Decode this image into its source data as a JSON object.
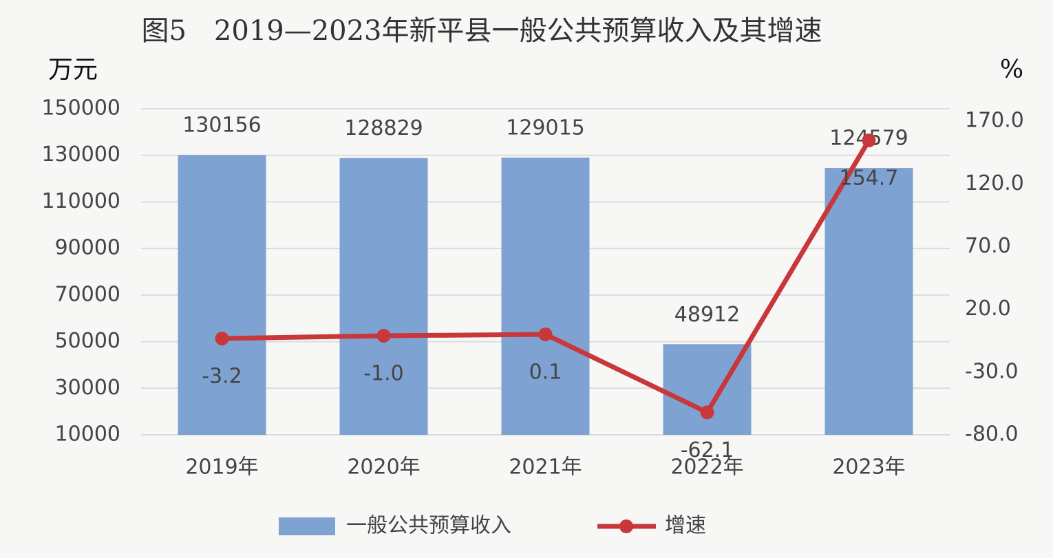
{
  "chart_data": {
    "type": "bar",
    "title": "图5　2019—2023年新平县一般公共预算收入及其增速",
    "y_label": "万元",
    "y2_label": "%",
    "categories": [
      "2019年",
      "2020年",
      "2021年",
      "2022年",
      "2023年"
    ],
    "series": [
      {
        "name": "一般公共预算收入",
        "color": "#7ea3d3",
        "values": [
          130156,
          128829,
          129015,
          48912,
          124579
        ]
      },
      {
        "name": "增速",
        "type": "line",
        "axis": "y2",
        "color": "#c8373a",
        "values": [
          -3.2,
          -1.0,
          0.1,
          -62.1,
          154.7
        ],
        "value_labels": [
          "-3.2",
          "-1.0",
          "0.1",
          "-62.1",
          "154.7"
        ]
      }
    ],
    "ylim": [
      10000,
      150000
    ],
    "yticks": [
      10000,
      30000,
      50000,
      70000,
      90000,
      110000,
      130000,
      150000
    ],
    "y2lim": [
      -80,
      180
    ],
    "y2ticks": [
      {
        "value": -80,
        "label": "-80.0"
      },
      {
        "value": -30,
        "label": "-30.0"
      },
      {
        "value": 20,
        "label": "20.0"
      },
      {
        "value": 70,
        "label": "70.0"
      },
      {
        "value": 120,
        "label": "120.0"
      },
      {
        "value": 170,
        "label": "170.0"
      }
    ],
    "grid": true,
    "legend": "bottom"
  }
}
